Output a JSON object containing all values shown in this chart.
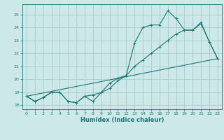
{
  "xlabel": "Humidex (Indice chaleur)",
  "ylabel": "",
  "bg_color": "#cce8e8",
  "grid_color": "#aacccc",
  "line_color": "#1a7a6e",
  "ylim": [
    17.7,
    25.8
  ],
  "xlim": [
    -0.5,
    23.5
  ],
  "yticks": [
    18,
    19,
    20,
    21,
    22,
    23,
    24,
    25
  ],
  "xticks": [
    0,
    1,
    2,
    3,
    4,
    5,
    6,
    7,
    8,
    9,
    10,
    11,
    12,
    13,
    14,
    15,
    16,
    17,
    18,
    19,
    20,
    21,
    22,
    23
  ],
  "line1_x": [
    0,
    1,
    2,
    3,
    4,
    5,
    6,
    7,
    8,
    9,
    10,
    11,
    12,
    13,
    14,
    15,
    16,
    17,
    18,
    19,
    20,
    21,
    22,
    23
  ],
  "line1_y": [
    18.7,
    18.3,
    18.6,
    19.0,
    19.0,
    18.3,
    18.2,
    18.7,
    18.3,
    19.0,
    19.3,
    19.9,
    20.3,
    22.8,
    24.0,
    24.2,
    24.2,
    25.3,
    24.7,
    23.8,
    23.8,
    24.4,
    22.9,
    21.6
  ],
  "line2_x": [
    0,
    1,
    2,
    3,
    4,
    5,
    6,
    7,
    8,
    9,
    10,
    11,
    12,
    13,
    14,
    15,
    16,
    17,
    18,
    19,
    20,
    21,
    22,
    23
  ],
  "line2_y": [
    18.7,
    18.3,
    18.6,
    19.0,
    19.0,
    18.3,
    18.2,
    18.7,
    18.8,
    19.0,
    19.7,
    20.1,
    20.3,
    21.0,
    21.5,
    22.0,
    22.5,
    23.0,
    23.5,
    23.8,
    23.8,
    24.3,
    22.9,
    21.6
  ],
  "line3_x": [
    0,
    23
  ],
  "line3_y": [
    18.7,
    21.6
  ]
}
